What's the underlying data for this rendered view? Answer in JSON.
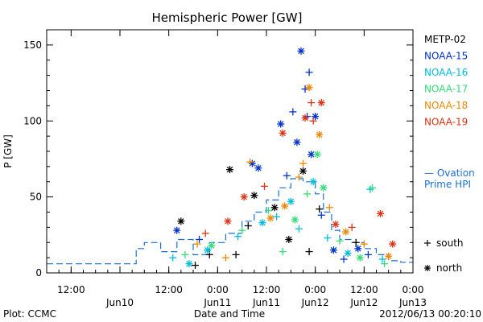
{
  "chart_data": {
    "type": "scatter",
    "title": "Hemispheric Power [GW]",
    "xlabel": "Date and Time",
    "ylabel": "P [GW]",
    "xlim": [
      "2012-06-09T06:00",
      "2012-06-13T00:00"
    ],
    "ylim": [
      0,
      160
    ],
    "yticks": [
      0,
      50,
      100,
      150
    ],
    "ytick_labels": [
      "0",
      "50",
      "100",
      "150"
    ],
    "xticks": [
      {
        "t": "2012-06-09T12:00",
        "time": "12:00",
        "day": ""
      },
      {
        "t": "2012-06-10T00:00",
        "time": "",
        "day": "Jun10"
      },
      {
        "t": "2012-06-10T12:00",
        "time": "12:00",
        "day": ""
      },
      {
        "t": "2012-06-11T00:00",
        "time": "0:00",
        "day": "Jun11"
      },
      {
        "t": "2012-06-11T12:00",
        "time": "12:00",
        "day": "Jun11"
      },
      {
        "t": "2012-06-12T00:00",
        "time": "0:00",
        "day": "Jun12"
      },
      {
        "t": "2012-06-12T12:00",
        "time": "12:00",
        "day": "Jun12"
      },
      {
        "t": "2012-06-13T00:00",
        "time": "0:00",
        "day": "Jun13"
      }
    ],
    "grid": false,
    "legend_position": "right",
    "legend_symbols": [
      {
        "symbol": "+",
        "label": "south"
      },
      {
        "symbol": "*",
        "label": "north"
      }
    ],
    "series": [
      {
        "name": "METP-02",
        "color": "#000000",
        "points": [
          {
            "t": "2012-06-10T15:00",
            "y": 34,
            "hemi": "north"
          },
          {
            "t": "2012-06-10T18:30",
            "y": 5,
            "hemi": "south"
          },
          {
            "t": "2012-06-10T22:00",
            "y": 12,
            "hemi": "south"
          },
          {
            "t": "2012-06-11T03:00",
            "y": 68,
            "hemi": "north"
          },
          {
            "t": "2012-06-11T04:30",
            "y": 12,
            "hemi": "south"
          },
          {
            "t": "2012-06-11T07:30",
            "y": 31,
            "hemi": "south"
          },
          {
            "t": "2012-06-11T09:00",
            "y": 51,
            "hemi": "north"
          },
          {
            "t": "2012-06-11T14:00",
            "y": 43,
            "hemi": "north"
          },
          {
            "t": "2012-06-11T17:30",
            "y": 22,
            "hemi": "north"
          },
          {
            "t": "2012-06-11T21:00",
            "y": 67,
            "hemi": "north"
          },
          {
            "t": "2012-06-11T22:30",
            "y": 14,
            "hemi": "south"
          },
          {
            "t": "2012-06-12T01:00",
            "y": 42,
            "hemi": "south"
          },
          {
            "t": "2012-06-12T10:00",
            "y": 20,
            "hemi": "south"
          }
        ]
      },
      {
        "name": "NOAA-15",
        "color": "#0033cc",
        "points": [
          {
            "t": "2012-06-10T14:00",
            "y": 28,
            "hemi": "north"
          },
          {
            "t": "2012-06-10T19:30",
            "y": 22,
            "hemi": "south"
          },
          {
            "t": "2012-06-11T08:30",
            "y": 72,
            "hemi": "north"
          },
          {
            "t": "2012-06-11T10:00",
            "y": 69,
            "hemi": "north"
          },
          {
            "t": "2012-06-11T15:30",
            "y": 98,
            "hemi": "north"
          },
          {
            "t": "2012-06-11T17:00",
            "y": 64,
            "hemi": "south"
          },
          {
            "t": "2012-06-11T18:30",
            "y": 106,
            "hemi": "south"
          },
          {
            "t": "2012-06-11T19:30",
            "y": 86,
            "hemi": "north"
          },
          {
            "t": "2012-06-11T20:30",
            "y": 146,
            "hemi": "north"
          },
          {
            "t": "2012-06-11T21:30",
            "y": 121,
            "hemi": "south"
          },
          {
            "t": "2012-06-11T22:00",
            "y": 103,
            "hemi": "south"
          },
          {
            "t": "2012-06-11T22:30",
            "y": 132,
            "hemi": "south"
          },
          {
            "t": "2012-06-11T23:00",
            "y": 78,
            "hemi": "north"
          },
          {
            "t": "2012-06-12T00:00",
            "y": 103,
            "hemi": "north"
          },
          {
            "t": "2012-06-12T01:30",
            "y": 38,
            "hemi": "south"
          },
          {
            "t": "2012-06-12T04:30",
            "y": 15,
            "hemi": "north"
          },
          {
            "t": "2012-06-12T07:00",
            "y": 9,
            "hemi": "south"
          },
          {
            "t": "2012-06-12T10:30",
            "y": 16,
            "hemi": "north"
          },
          {
            "t": "2012-06-12T13:00",
            "y": 12,
            "hemi": "south"
          }
        ]
      },
      {
        "name": "NOAA-16",
        "color": "#00bbdd",
        "points": [
          {
            "t": "2012-06-10T13:00",
            "y": 10,
            "hemi": "south"
          },
          {
            "t": "2012-06-10T17:00",
            "y": 6,
            "hemi": "north"
          },
          {
            "t": "2012-06-10T21:30",
            "y": 15,
            "hemi": "north"
          },
          {
            "t": "2012-06-11T05:00",
            "y": 24,
            "hemi": "south"
          },
          {
            "t": "2012-06-11T11:00",
            "y": 33,
            "hemi": "north"
          },
          {
            "t": "2012-06-11T14:30",
            "y": 37,
            "hemi": "south"
          },
          {
            "t": "2012-06-11T18:00",
            "y": 47,
            "hemi": "north"
          },
          {
            "t": "2012-06-11T20:00",
            "y": 29,
            "hemi": "south"
          },
          {
            "t": "2012-06-11T23:30",
            "y": 60,
            "hemi": "north"
          },
          {
            "t": "2012-06-12T03:00",
            "y": 23,
            "hemi": "south"
          },
          {
            "t": "2012-06-12T08:00",
            "y": 13,
            "hemi": "north"
          },
          {
            "t": "2012-06-12T13:30",
            "y": 55,
            "hemi": "south"
          },
          {
            "t": "2012-06-12T16:30",
            "y": 9,
            "hemi": "south"
          }
        ]
      },
      {
        "name": "NOAA-17",
        "color": "#33dd77",
        "points": [
          {
            "t": "2012-06-10T16:00",
            "y": 12,
            "hemi": "south"
          },
          {
            "t": "2012-06-10T22:30",
            "y": 18,
            "hemi": "north"
          },
          {
            "t": "2012-06-11T06:00",
            "y": 28,
            "hemi": "south"
          },
          {
            "t": "2012-06-11T12:30",
            "y": 41,
            "hemi": "south"
          },
          {
            "t": "2012-06-11T16:00",
            "y": 14,
            "hemi": "south"
          },
          {
            "t": "2012-06-11T19:00",
            "y": 35,
            "hemi": "north"
          },
          {
            "t": "2012-06-11T22:00",
            "y": 52,
            "hemi": "south"
          },
          {
            "t": "2012-06-12T00:30",
            "y": 78,
            "hemi": "north"
          },
          {
            "t": "2012-06-12T02:00",
            "y": 56,
            "hemi": "north"
          },
          {
            "t": "2012-06-12T06:00",
            "y": 21,
            "hemi": "south"
          },
          {
            "t": "2012-06-12T11:00",
            "y": 10,
            "hemi": "north"
          },
          {
            "t": "2012-06-12T14:00",
            "y": 56,
            "hemi": "south"
          },
          {
            "t": "2012-06-12T17:00",
            "y": 6,
            "hemi": "south"
          }
        ]
      },
      {
        "name": "NOAA-18",
        "color": "#ee8800",
        "points": [
          {
            "t": "2012-06-10T19:00",
            "y": 19,
            "hemi": "south"
          },
          {
            "t": "2012-06-11T02:00",
            "y": 10,
            "hemi": "south"
          },
          {
            "t": "2012-06-11T08:00",
            "y": 73,
            "hemi": "south"
          },
          {
            "t": "2012-06-11T13:00",
            "y": 36,
            "hemi": "north"
          },
          {
            "t": "2012-06-11T16:30",
            "y": 44,
            "hemi": "north"
          },
          {
            "t": "2012-06-11T20:00",
            "y": 63,
            "hemi": "south"
          },
          {
            "t": "2012-06-11T21:00",
            "y": 72,
            "hemi": "south"
          },
          {
            "t": "2012-06-11T22:30",
            "y": 122,
            "hemi": "north"
          },
          {
            "t": "2012-06-12T01:00",
            "y": 91,
            "hemi": "north"
          },
          {
            "t": "2012-06-12T03:30",
            "y": 43,
            "hemi": "south"
          },
          {
            "t": "2012-06-12T07:30",
            "y": 27,
            "hemi": "north"
          },
          {
            "t": "2012-06-12T12:00",
            "y": 19,
            "hemi": "south"
          },
          {
            "t": "2012-06-12T18:00",
            "y": 11,
            "hemi": "north"
          }
        ]
      },
      {
        "name": "NOAA-19",
        "color": "#dd3311",
        "points": [
          {
            "t": "2012-06-10T21:00",
            "y": 26,
            "hemi": "south"
          },
          {
            "t": "2012-06-11T02:30",
            "y": 34,
            "hemi": "north"
          },
          {
            "t": "2012-06-11T06:30",
            "y": 50,
            "hemi": "north"
          },
          {
            "t": "2012-06-11T11:30",
            "y": 57,
            "hemi": "south"
          },
          {
            "t": "2012-06-11T16:00",
            "y": 92,
            "hemi": "north"
          },
          {
            "t": "2012-06-11T21:30",
            "y": 102,
            "hemi": "north"
          },
          {
            "t": "2012-06-11T23:00",
            "y": 112,
            "hemi": "south"
          },
          {
            "t": "2012-06-11T23:30",
            "y": 100,
            "hemi": "south"
          },
          {
            "t": "2012-06-12T01:30",
            "y": 112,
            "hemi": "north"
          },
          {
            "t": "2012-06-12T05:00",
            "y": 32,
            "hemi": "north"
          },
          {
            "t": "2012-06-12T09:00",
            "y": 30,
            "hemi": "south"
          },
          {
            "t": "2012-06-12T16:00",
            "y": 39,
            "hemi": "north"
          },
          {
            "t": "2012-06-12T19:00",
            "y": 19,
            "hemi": "north"
          }
        ]
      }
    ],
    "ovation_label": [
      "— Ovation",
      "Prime HPI"
    ],
    "ovation_color": "#1a6fd6",
    "ovation_steps": [
      [
        "2012-06-09T06:00",
        6
      ],
      [
        "2012-06-10T02:00",
        6
      ],
      [
        "2012-06-10T04:00",
        16
      ],
      [
        "2012-06-10T06:00",
        20
      ],
      [
        "2012-06-10T10:00",
        14
      ],
      [
        "2012-06-10T14:00",
        22
      ],
      [
        "2012-06-10T18:00",
        12
      ],
      [
        "2012-06-10T22:00",
        20
      ],
      [
        "2012-06-11T02:00",
        26
      ],
      [
        "2012-06-11T06:00",
        34
      ],
      [
        "2012-06-11T09:00",
        40
      ],
      [
        "2012-06-11T12:00",
        48
      ],
      [
        "2012-06-11T15:00",
        56
      ],
      [
        "2012-06-11T18:00",
        62
      ],
      [
        "2012-06-11T21:00",
        60
      ],
      [
        "2012-06-12T00:00",
        52
      ],
      [
        "2012-06-12T02:00",
        40
      ],
      [
        "2012-06-12T04:00",
        28
      ],
      [
        "2012-06-12T06:00",
        22
      ],
      [
        "2012-06-12T09:00",
        20
      ],
      [
        "2012-06-12T12:00",
        16
      ],
      [
        "2012-06-12T15:00",
        12
      ],
      [
        "2012-06-12T18:00",
        8
      ],
      [
        "2012-06-12T21:00",
        7
      ],
      [
        "2012-06-13T00:00",
        7
      ]
    ]
  },
  "footer": {
    "plot_credit": "Plot: CCMC",
    "timestamp": "2012/06/13 00:20:10"
  }
}
